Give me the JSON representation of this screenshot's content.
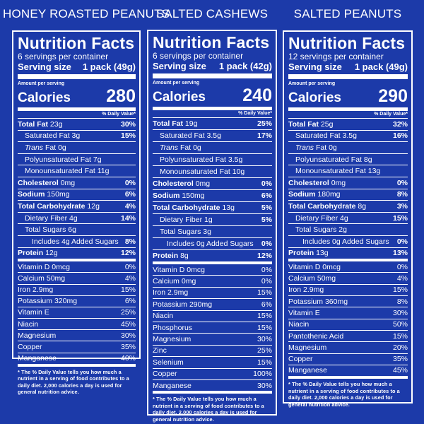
{
  "products": [
    {
      "name": "HONEY ROASTED PEANUTS",
      "title": "Nutrition Facts",
      "servings": "6 servings per container",
      "serving_label": "Serving size",
      "serving_value": "1 pack (49g)",
      "amount_label": "Amount per serving",
      "calories_label": "Calories",
      "calories": "280",
      "dv_header": "% Daily Value*",
      "nutrients": [
        {
          "label": "Total Fat",
          "amount": "23g",
          "dv": "30%",
          "bold": true,
          "indent": 0
        },
        {
          "label": "Saturated Fat",
          "amount": "3g",
          "dv": "15%",
          "bold": false,
          "indent": 1
        },
        {
          "label": "Trans",
          "label_suffix": " Fat",
          "amount": "0g",
          "dv": "",
          "bold": false,
          "indent": 1,
          "italic": true
        },
        {
          "label": "Polyunsaturated Fat",
          "amount": "7g",
          "dv": "",
          "bold": false,
          "indent": 1
        },
        {
          "label": "Monounsaturated Fat",
          "amount": "11g",
          "dv": "",
          "bold": false,
          "indent": 1
        },
        {
          "label": "Cholesterol",
          "amount": "0mg",
          "dv": "0%",
          "bold": true,
          "indent": 0
        },
        {
          "label": "Sodium",
          "amount": "150mg",
          "dv": "6%",
          "bold": true,
          "indent": 0
        },
        {
          "label": "Total Carbohydrate",
          "amount": "12g",
          "dv": "4%",
          "bold": true,
          "indent": 0
        },
        {
          "label": "Dietary Fiber",
          "amount": "4g",
          "dv": "14%",
          "bold": false,
          "indent": 1
        },
        {
          "label": "Total Sugars",
          "amount": "6g",
          "dv": "",
          "bold": false,
          "indent": 1
        },
        {
          "label": "Includes",
          "amount": "4g Added Sugars",
          "dv": "8%",
          "bold": false,
          "indent": 2
        },
        {
          "label": "Protein",
          "amount": "12g",
          "dv": "12%",
          "bold": true,
          "indent": 0
        }
      ],
      "vitamins": [
        {
          "label": "Vitamin D",
          "amount": "0mcg",
          "dv": "0%"
        },
        {
          "label": "Calcium",
          "amount": "50mg",
          "dv": "4%"
        },
        {
          "label": "Iron",
          "amount": "2.9mg",
          "dv": "15%"
        },
        {
          "label": "Potassium",
          "amount": "320mg",
          "dv": "6%"
        },
        {
          "label": "Vitamin E",
          "amount": "",
          "dv": "25%"
        },
        {
          "label": "Niacin",
          "amount": "",
          "dv": "45%"
        },
        {
          "label": "Magnesium",
          "amount": "",
          "dv": "30%"
        },
        {
          "label": "Copper",
          "amount": "",
          "dv": "35%"
        },
        {
          "label": "Manganese",
          "amount": "",
          "dv": "40%"
        }
      ],
      "footnote": "* The % Daily Value tells you how much a nutrient in a serving of food contributes to a daily diet. 2,000 calories a day is used for general nutrition advice."
    },
    {
      "name": "SALTED CASHEWS",
      "title": "Nutrition Facts",
      "servings": "6 servings per container",
      "serving_label": "Serving size",
      "serving_value": "1 pack (42g)",
      "amount_label": "Amount per serving",
      "calories_label": "Calories",
      "calories": "240",
      "dv_header": "% Daily Value*",
      "nutrients": [
        {
          "label": "Total Fat",
          "amount": "19g",
          "dv": "25%",
          "bold": true,
          "indent": 0
        },
        {
          "label": "Saturated Fat",
          "amount": "3.5g",
          "dv": "17%",
          "bold": false,
          "indent": 1
        },
        {
          "label": "Trans",
          "label_suffix": " Fat",
          "amount": "0g",
          "dv": "",
          "bold": false,
          "indent": 1,
          "italic": true
        },
        {
          "label": "Polyunsaturated Fat",
          "amount": "3.5g",
          "dv": "",
          "bold": false,
          "indent": 1
        },
        {
          "label": "Monounsaturated Fat",
          "amount": "10g",
          "dv": "",
          "bold": false,
          "indent": 1
        },
        {
          "label": "Cholesterol",
          "amount": "0mg",
          "dv": "0%",
          "bold": true,
          "indent": 0
        },
        {
          "label": "Sodium",
          "amount": "150mg",
          "dv": "6%",
          "bold": true,
          "indent": 0
        },
        {
          "label": "Total Carbohydrate",
          "amount": "13g",
          "dv": "5%",
          "bold": true,
          "indent": 0
        },
        {
          "label": "Dietary Fiber",
          "amount": "1g",
          "dv": "5%",
          "bold": false,
          "indent": 1
        },
        {
          "label": "Total Sugars",
          "amount": "3g",
          "dv": "",
          "bold": false,
          "indent": 1
        },
        {
          "label": "Includes",
          "amount": "0g Added Sugars",
          "dv": "0%",
          "bold": false,
          "indent": 2
        },
        {
          "label": "Protein",
          "amount": "8g",
          "dv": "12%",
          "bold": true,
          "indent": 0
        }
      ],
      "vitamins": [
        {
          "label": "Vitamin D",
          "amount": "0mcg",
          "dv": "0%"
        },
        {
          "label": "Calcium",
          "amount": "0mg",
          "dv": "0%"
        },
        {
          "label": "Iron",
          "amount": "2.9mg",
          "dv": "15%"
        },
        {
          "label": "Potassium",
          "amount": "290mg",
          "dv": "6%"
        },
        {
          "label": "Niacin",
          "amount": "",
          "dv": "15%"
        },
        {
          "label": "Phosphorus",
          "amount": "",
          "dv": "15%"
        },
        {
          "label": "Magnesium",
          "amount": "",
          "dv": "30%"
        },
        {
          "label": "Zinc",
          "amount": "",
          "dv": "25%"
        },
        {
          "label": "Selenium",
          "amount": "",
          "dv": "15%"
        },
        {
          "label": "Copper",
          "amount": "",
          "dv": "100%"
        },
        {
          "label": "Manganese",
          "amount": "",
          "dv": "30%"
        }
      ],
      "footnote": "* The % Daily Value tells you how much a nutrient in a serving of food contributes to a daily diet. 2,000 calories a day is used for general nutrition advice."
    },
    {
      "name": "SALTED PEANUTS",
      "title": "Nutrition Facts",
      "servings": "12 servings per container",
      "serving_label": "Serving size",
      "serving_value": "1 pack (49g)",
      "amount_label": "Amount per serving",
      "calories_label": "Calories",
      "calories": "290",
      "dv_header": "% Daily Value*",
      "nutrients": [
        {
          "label": "Total Fat",
          "amount": "25g",
          "dv": "32%",
          "bold": true,
          "indent": 0
        },
        {
          "label": "Saturated Fat",
          "amount": "3.5g",
          "dv": "16%",
          "bold": false,
          "indent": 1
        },
        {
          "label": "Trans",
          "label_suffix": " Fat",
          "amount": "0g",
          "dv": "",
          "bold": false,
          "indent": 1,
          "italic": true
        },
        {
          "label": "Polyunsaturated Fat",
          "amount": "8g",
          "dv": "",
          "bold": false,
          "indent": 1
        },
        {
          "label": "Monounsaturated Fat",
          "amount": "13g",
          "dv": "",
          "bold": false,
          "indent": 1
        },
        {
          "label": "Cholesterol",
          "amount": "0mg",
          "dv": "0%",
          "bold": true,
          "indent": 0
        },
        {
          "label": "Sodium",
          "amount": "180mg",
          "dv": "8%",
          "bold": true,
          "indent": 0
        },
        {
          "label": "Total Carbohydrate",
          "amount": "8g",
          "dv": "3%",
          "bold": true,
          "indent": 0
        },
        {
          "label": "Dietary Fiber",
          "amount": "4g",
          "dv": "15%",
          "bold": false,
          "indent": 1
        },
        {
          "label": "Total Sugars",
          "amount": "2g",
          "dv": "",
          "bold": false,
          "indent": 1
        },
        {
          "label": "Includes",
          "amount": "0g Added Sugars",
          "dv": "0%",
          "bold": false,
          "indent": 2
        },
        {
          "label": "Protein",
          "amount": "13g",
          "dv": "13%",
          "bold": true,
          "indent": 0
        }
      ],
      "vitamins": [
        {
          "label": "Vitamin D",
          "amount": "0mcg",
          "dv": "0%"
        },
        {
          "label": "Calcium",
          "amount": "50mg",
          "dv": "4%"
        },
        {
          "label": "Iron",
          "amount": "2.9mg",
          "dv": "15%"
        },
        {
          "label": "Potassium",
          "amount": "360mg",
          "dv": "8%"
        },
        {
          "label": "Vitamin E",
          "amount": "",
          "dv": "30%"
        },
        {
          "label": "Niacin",
          "amount": "",
          "dv": "50%"
        },
        {
          "label": "Pantothenic Acid",
          "amount": "",
          "dv": "15%"
        },
        {
          "label": "Magnesium",
          "amount": "",
          "dv": "20%"
        },
        {
          "label": "Copper",
          "amount": "",
          "dv": "35%"
        },
        {
          "label": "Manganese",
          "amount": "",
          "dv": "45%"
        }
      ],
      "footnote": "* The % Daily Value tells you how much a nutrient in a serving of food contributes to a daily diet. 2,000 calories a day is used for general nutrition advice."
    }
  ]
}
